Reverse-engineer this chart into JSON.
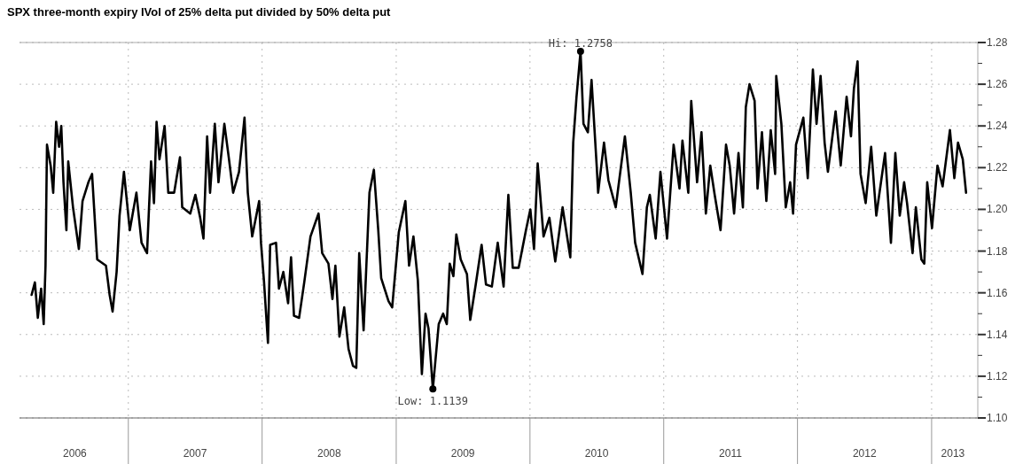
{
  "chart_data": {
    "type": "line",
    "title": "SPX three-month expiry IVol of 25% delta put divided by 50% delta put",
    "xlim": [
      "2006-03-10",
      "2013-05-07"
    ],
    "xticks": [
      {
        "value": "2006-08-08",
        "label": "2006"
      },
      {
        "value": "2007-01-01",
        "label": null
      },
      {
        "value": "2007-07-02",
        "label": "2007"
      },
      {
        "value": "2008-01-01",
        "label": null
      },
      {
        "value": "2008-07-02",
        "label": "2008"
      },
      {
        "value": "2009-01-01",
        "label": null
      },
      {
        "value": "2009-07-02",
        "label": "2009"
      },
      {
        "value": "2010-01-01",
        "label": null
      },
      {
        "value": "2010-07-02",
        "label": "2010"
      },
      {
        "value": "2011-01-01",
        "label": null
      },
      {
        "value": "2011-07-02",
        "label": "2011"
      },
      {
        "value": "2012-01-01",
        "label": null
      },
      {
        "value": "2012-07-02",
        "label": "2012"
      },
      {
        "value": "2013-01-01",
        "label": null
      },
      {
        "value": "2013-02-28",
        "label": "2013"
      }
    ],
    "ylim": [
      1.1,
      1.28
    ],
    "yticks": [
      {
        "value": 1.1,
        "label": "1.10"
      },
      {
        "value": 1.11,
        "label": null
      },
      {
        "value": 1.12,
        "label": "1.12"
      },
      {
        "value": 1.13,
        "label": null
      },
      {
        "value": 1.14,
        "label": "1.14"
      },
      {
        "value": 1.15,
        "label": null
      },
      {
        "value": 1.16,
        "label": "1.16"
      },
      {
        "value": 1.17,
        "label": null
      },
      {
        "value": 1.18,
        "label": "1.18"
      },
      {
        "value": 1.19,
        "label": null
      },
      {
        "value": 1.2,
        "label": "1.20"
      },
      {
        "value": 1.21,
        "label": null
      },
      {
        "value": 1.22,
        "label": "1.22"
      },
      {
        "value": 1.23,
        "label": null
      },
      {
        "value": 1.24,
        "label": "1.24"
      },
      {
        "value": 1.25,
        "label": null
      },
      {
        "value": 1.26,
        "label": "1.26"
      },
      {
        "value": 1.27,
        "label": null
      },
      {
        "value": 1.28,
        "label": "1.28"
      }
    ],
    "grid": true,
    "annotations": [
      {
        "text": "Hi: 1.2758",
        "x": "2010-05-19",
        "y": 1.2758
      },
      {
        "text": "Low: 1.1139",
        "x": "2009-04-11",
        "y": 1.1139
      }
    ],
    "series": [
      {
        "color": "#000000",
        "x": [
          "2006-04-12",
          "2006-04-21",
          "2006-04-29",
          "2006-05-08",
          "2006-05-15",
          "2006-05-20",
          "2006-05-24",
          "2006-06-03",
          "2006-06-10",
          "2006-06-18",
          "2006-06-26",
          "2006-07-02",
          "2006-07-08",
          "2006-07-16",
          "2006-07-21",
          "2006-08-03",
          "2006-08-19",
          "2006-08-29",
          "2006-09-14",
          "2006-09-24",
          "2006-10-08",
          "2006-11-01",
          "2006-11-11",
          "2006-11-19",
          "2006-11-30",
          "2006-12-08",
          "2006-12-20",
          "2007-01-05",
          "2007-01-23",
          "2007-02-06",
          "2007-02-21",
          "2007-03-04",
          "2007-03-12",
          "2007-03-19",
          "2007-03-27",
          "2007-04-10",
          "2007-04-20",
          "2007-05-06",
          "2007-05-22",
          "2007-05-28",
          "2007-06-19",
          "2007-07-03",
          "2007-07-16",
          "2007-07-25",
          "2007-08-04",
          "2007-08-12",
          "2007-08-25",
          "2007-09-04",
          "2007-09-20",
          "2007-10-02",
          "2007-10-14",
          "2007-10-30",
          "2007-11-14",
          "2007-11-23",
          "2007-12-05",
          "2007-12-24",
          "2007-12-29",
          "2008-01-06",
          "2008-01-17",
          "2008-01-23",
          "2008-02-08",
          "2008-02-16",
          "2008-02-28",
          "2008-03-12",
          "2008-03-20",
          "2008-03-28",
          "2008-04-11",
          "2008-04-25",
          "2008-05-12",
          "2008-06-03",
          "2008-06-13",
          "2008-06-30",
          "2008-07-11",
          "2008-07-19",
          "2008-07-30",
          "2008-08-12",
          "2008-08-24",
          "2008-09-05",
          "2008-09-14",
          "2008-09-22",
          "2008-10-04",
          "2008-10-20",
          "2008-11-01",
          "2008-11-13",
          "2008-11-21",
          "2008-12-11",
          "2008-12-21",
          "2009-01-08",
          "2009-01-26",
          "2009-02-05",
          "2009-02-17",
          "2009-03-01",
          "2009-03-12",
          "2009-03-22",
          "2009-03-30",
          "2009-04-11",
          "2009-04-27",
          "2009-05-09",
          "2009-05-19",
          "2009-05-27",
          "2009-06-06",
          "2009-06-14",
          "2009-06-26",
          "2009-07-13",
          "2009-07-22",
          "2009-08-06",
          "2009-08-22",
          "2009-09-03",
          "2009-09-19",
          "2009-10-05",
          "2009-10-21",
          "2009-11-03",
          "2009-11-15",
          "2009-12-01",
          "2009-12-21",
          "2010-01-02",
          "2010-01-12",
          "2010-01-22",
          "2010-02-07",
          "2010-02-23",
          "2010-03-11",
          "2010-03-31",
          "2010-04-21",
          "2010-04-29",
          "2010-05-08",
          "2010-05-19",
          "2010-05-27",
          "2010-06-08",
          "2010-06-18",
          "2010-07-02",
          "2010-07-06",
          "2010-07-22",
          "2010-08-03",
          "2010-08-23",
          "2010-09-17",
          "2010-10-03",
          "2010-10-15",
          "2010-11-04",
          "2010-11-16",
          "2010-11-24",
          "2010-12-10",
          "2010-12-23",
          "2011-01-10",
          "2011-01-28",
          "2011-02-13",
          "2011-02-21",
          "2011-03-09",
          "2011-03-17",
          "2011-04-02",
          "2011-04-14",
          "2011-04-26",
          "2011-05-08",
          "2011-05-20",
          "2011-06-05",
          "2011-06-20",
          "2011-06-30",
          "2011-07-12",
          "2011-07-24",
          "2011-08-05",
          "2011-08-13",
          "2011-08-23",
          "2011-09-06",
          "2011-09-14",
          "2011-09-26",
          "2011-10-08",
          "2011-10-20",
          "2011-11-01",
          "2011-11-04",
          "2011-11-18",
          "2011-11-30",
          "2011-12-12",
          "2011-12-20",
          "2011-12-28",
          "2012-01-17",
          "2012-01-29",
          "2012-02-12",
          "2012-02-22",
          "2012-03-04",
          "2012-03-15",
          "2012-03-24",
          "2012-04-14",
          "2012-04-28",
          "2012-05-14",
          "2012-05-26",
          "2012-06-03",
          "2012-06-13",
          "2012-06-21",
          "2012-07-05",
          "2012-07-20",
          "2012-08-03",
          "2012-08-27",
          "2012-09-12",
          "2012-09-24",
          "2012-10-06",
          "2012-10-18",
          "2012-10-26",
          "2012-11-10",
          "2012-11-19",
          "2012-12-04",
          "2012-12-12",
          "2012-12-20",
          "2013-01-02",
          "2013-01-17",
          "2013-01-31",
          "2013-02-20",
          "2013-03-04",
          "2013-03-14",
          "2013-03-27",
          "2013-04-05"
        ],
        "values": [
          1.159,
          1.165,
          1.148,
          1.162,
          1.145,
          1.173,
          1.231,
          1.221,
          1.208,
          1.242,
          1.23,
          1.24,
          1.213,
          1.19,
          1.223,
          1.201,
          1.181,
          1.204,
          1.213,
          1.217,
          1.176,
          1.173,
          1.159,
          1.151,
          1.17,
          1.197,
          1.218,
          1.19,
          1.208,
          1.184,
          1.179,
          1.223,
          1.203,
          1.242,
          1.224,
          1.24,
          1.208,
          1.208,
          1.225,
          1.201,
          1.198,
          1.207,
          1.196,
          1.186,
          1.235,
          1.208,
          1.241,
          1.213,
          1.241,
          1.225,
          1.208,
          1.218,
          1.244,
          1.208,
          1.187,
          1.204,
          1.184,
          1.166,
          1.136,
          1.183,
          1.184,
          1.162,
          1.17,
          1.155,
          1.177,
          1.149,
          1.148,
          1.165,
          1.187,
          1.198,
          1.179,
          1.174,
          1.157,
          1.173,
          1.139,
          1.153,
          1.133,
          1.125,
          1.124,
          1.179,
          1.142,
          1.208,
          1.219,
          1.19,
          1.167,
          1.156,
          1.153,
          1.189,
          1.204,
          1.173,
          1.187,
          1.166,
          1.121,
          1.15,
          1.143,
          1.1139,
          1.145,
          1.15,
          1.145,
          1.174,
          1.168,
          1.188,
          1.176,
          1.169,
          1.147,
          1.164,
          1.183,
          1.164,
          1.163,
          1.184,
          1.163,
          1.207,
          1.172,
          1.172,
          1.19,
          1.2,
          1.181,
          1.222,
          1.187,
          1.196,
          1.175,
          1.201,
          1.177,
          1.232,
          1.254,
          1.2758,
          1.241,
          1.237,
          1.262,
          1.221,
          1.208,
          1.232,
          1.214,
          1.201,
          1.235,
          1.208,
          1.184,
          1.169,
          1.201,
          1.207,
          1.186,
          1.218,
          1.186,
          1.231,
          1.21,
          1.233,
          1.208,
          1.252,
          1.213,
          1.237,
          1.198,
          1.221,
          1.207,
          1.19,
          1.231,
          1.221,
          1.198,
          1.227,
          1.201,
          1.249,
          1.26,
          1.252,
          1.21,
          1.237,
          1.204,
          1.238,
          1.217,
          1.264,
          1.241,
          1.201,
          1.213,
          1.198,
          1.231,
          1.244,
          1.215,
          1.267,
          1.241,
          1.264,
          1.232,
          1.218,
          1.247,
          1.221,
          1.254,
          1.235,
          1.258,
          1.271,
          1.217,
          1.203,
          1.23,
          1.197,
          1.227,
          1.184,
          1.227,
          1.197,
          1.213,
          1.203,
          1.179,
          1.201,
          1.176,
          1.174,
          1.213,
          1.191,
          1.221,
          1.211,
          1.238,
          1.215,
          1.232,
          1.224,
          1.208
        ]
      }
    ]
  }
}
